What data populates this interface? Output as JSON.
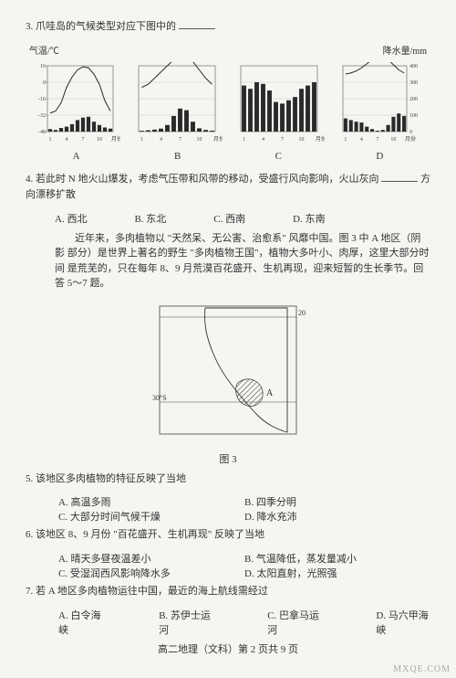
{
  "q3": {
    "text_a": "3. 爪哇岛的气候类型对应下图中的",
    "blank": true,
    "y_left_label": "气温/℃",
    "y_right_label": "降水量/mm",
    "left_ticks": [
      16,
      0,
      -16,
      -32,
      -48
    ],
    "right_ticks": [
      400,
      300,
      200,
      100,
      0
    ],
    "x_ticks": [
      "1",
      "4",
      "7",
      "10",
      "月份"
    ],
    "series": {
      "A": {
        "line": [
          -30,
          -28,
          -20,
          -5,
          5,
          12,
          15,
          14,
          8,
          -2,
          -18,
          -28
        ],
        "bars": [
          15,
          10,
          22,
          30,
          45,
          70,
          85,
          90,
          60,
          40,
          25,
          18
        ]
      },
      "B": {
        "line": [
          -5,
          -2,
          4,
          10,
          16,
          22,
          26,
          25,
          20,
          12,
          4,
          -2
        ],
        "bars": [
          5,
          8,
          12,
          18,
          40,
          95,
          140,
          130,
          60,
          20,
          10,
          6
        ]
      },
      "C": {
        "line": [
          26,
          26,
          27,
          27,
          27,
          27,
          27,
          27,
          27,
          27,
          27,
          26
        ],
        "bars": [
          280,
          260,
          300,
          290,
          250,
          180,
          170,
          190,
          210,
          260,
          280,
          300
        ]
      },
      "D": {
        "line": [
          8,
          9,
          11,
          14,
          18,
          22,
          25,
          25,
          22,
          17,
          12,
          9
        ],
        "bars": [
          80,
          70,
          60,
          55,
          30,
          15,
          5,
          10,
          40,
          90,
          110,
          95
        ]
      }
    },
    "labels": [
      "A",
      "B",
      "C",
      "D"
    ],
    "bar_color": "#2a2a2a",
    "line_color": "#2a2a2a",
    "axis_color": "#555",
    "grid_color": "#999",
    "bg": "#f5f5f2"
  },
  "q4": {
    "text_a": "4. 若此时 N 地火山爆发，考虑气压带和风带的移动，受盛行风向影响，火山灰向",
    "text_b": "方",
    "text_c": "向漂移扩散",
    "options": {
      "A": "A. 西北",
      "B": "B. 东北",
      "C": "C. 西南",
      "D": "D. 东南"
    }
  },
  "passage": {
    "l1": "近年来，多肉植物以 \"天然呆、无公害、治愈系\" 风靡中国。图 3 中 A 地区（阴影",
    "l2": "部分）是世界上著名的野生 \"多肉植物王国\"，植物大多叶小、肉厚，这里大部分时间",
    "l3": "是荒芜的，只在每年 8、9 月荒漠百花盛开、生机再现，迎来短暂的生长季节。回答 5～7",
    "l4": "题。"
  },
  "map": {
    "caption": "图 3",
    "lat_top": "20°S",
    "lat_bot": "30°S",
    "label_A": "A",
    "border_color": "#444",
    "hatch_color": "#333",
    "coast_color": "#333"
  },
  "q5": {
    "stem": "5. 该地区多肉植物的特征反映了当地",
    "A": "A. 高温多雨",
    "B": "B. 四季分明",
    "C": "C. 大部分时间气候干燥",
    "D": "D. 降水充沛"
  },
  "q6": {
    "stem": "6. 该地区 8、9 月份 \"百花盛开、生机再现\" 反映了当地",
    "A": "A. 晴天多昼夜温差小",
    "B": "B. 气温降低，蒸发量减小",
    "C": "C. 受湿润西风影响降水多",
    "D": "D. 太阳直射，光照强"
  },
  "q7": {
    "stem": "7. 若 A 地区多肉植物运往中国，最近的海上航线需经过",
    "A": "A. 白令海峡",
    "B": "B. 苏伊士运河",
    "C": "C. 巴拿马运河",
    "D": "D. 马六甲海峡"
  },
  "footer": "高二地理（文科）第 2 页共 9 页",
  "watermark": "MXQE.COM"
}
